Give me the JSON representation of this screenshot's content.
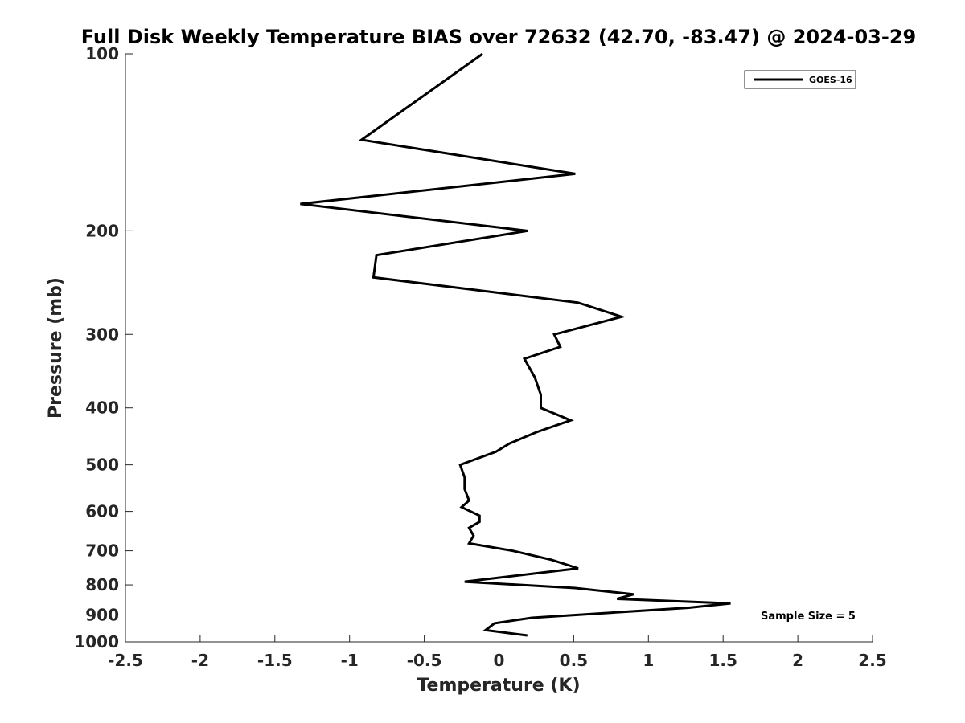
{
  "chart_data": {
    "type": "line",
    "title": "Full Disk Weekly Temperature BIAS over 72632 (42.70, -83.47) @ 2024-03-29",
    "xlabel": "Temperature (K)",
    "ylabel": "Pressure (mb)",
    "xlim": [
      -2.5,
      2.5
    ],
    "ylim": [
      100,
      1000
    ],
    "y_scale": "log",
    "y_reversed": true,
    "x_ticks": [
      "-2.5",
      "-2",
      "-1.5",
      "-1",
      "-0.5",
      "0",
      "0.5",
      "1",
      "1.5",
      "2",
      "2.5"
    ],
    "y_ticks": [
      "100",
      "200",
      "300",
      "400",
      "500",
      "600",
      "700",
      "800",
      "900",
      "1000"
    ],
    "grid": false,
    "legend_position": "top-right",
    "series": [
      {
        "name": "GOES-16",
        "color": "#000000",
        "points": [
          {
            "x": -0.11,
            "y": 100
          },
          {
            "x": -0.92,
            "y": 140
          },
          {
            "x": 0.51,
            "y": 160
          },
          {
            "x": -1.33,
            "y": 180
          },
          {
            "x": 0.19,
            "y": 200
          },
          {
            "x": -0.82,
            "y": 220
          },
          {
            "x": -0.84,
            "y": 240
          },
          {
            "x": 0.53,
            "y": 265
          },
          {
            "x": 0.82,
            "y": 280
          },
          {
            "x": 0.37,
            "y": 300
          },
          {
            "x": 0.41,
            "y": 315
          },
          {
            "x": 0.17,
            "y": 330
          },
          {
            "x": 0.24,
            "y": 355
          },
          {
            "x": 0.28,
            "y": 380
          },
          {
            "x": 0.28,
            "y": 400
          },
          {
            "x": 0.48,
            "y": 420
          },
          {
            "x": 0.25,
            "y": 440
          },
          {
            "x": 0.07,
            "y": 460
          },
          {
            "x": -0.02,
            "y": 475
          },
          {
            "x": -0.26,
            "y": 500
          },
          {
            "x": -0.23,
            "y": 525
          },
          {
            "x": -0.23,
            "y": 550
          },
          {
            "x": -0.2,
            "y": 575
          },
          {
            "x": -0.25,
            "y": 590
          },
          {
            "x": -0.13,
            "y": 610
          },
          {
            "x": -0.13,
            "y": 625
          },
          {
            "x": -0.2,
            "y": 640
          },
          {
            "x": -0.17,
            "y": 660
          },
          {
            "x": -0.2,
            "y": 680
          },
          {
            "x": 0.09,
            "y": 700
          },
          {
            "x": 0.35,
            "y": 725
          },
          {
            "x": 0.53,
            "y": 750
          },
          {
            "x": -0.23,
            "y": 790
          },
          {
            "x": 0.51,
            "y": 810
          },
          {
            "x": 0.9,
            "y": 830
          },
          {
            "x": 0.79,
            "y": 845
          },
          {
            "x": 1.55,
            "y": 860
          },
          {
            "x": 1.27,
            "y": 875
          },
          {
            "x": 0.22,
            "y": 910
          },
          {
            "x": -0.03,
            "y": 930
          },
          {
            "x": -0.09,
            "y": 955
          },
          {
            "x": 0.19,
            "y": 975
          }
        ]
      }
    ],
    "annotation": "Sample Size = 5"
  }
}
